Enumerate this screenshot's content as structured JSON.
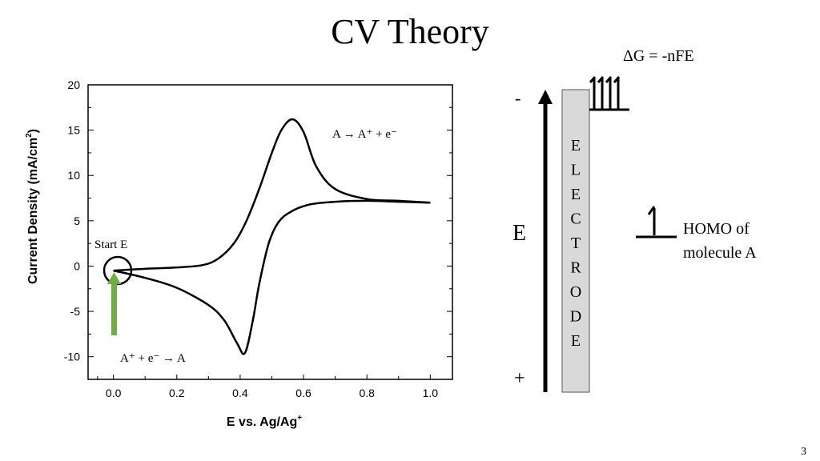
{
  "slide": {
    "title": "CV Theory",
    "page_number": "3"
  },
  "chart_data": {
    "type": "line",
    "xlabel": "E vs. Ag/Ag",
    "xlabel_sup": "+",
    "ylabel": "Current Density (mA/cm",
    "ylabel_sup": "2",
    "ylabel_end": ")",
    "xlim": [
      -0.08,
      1.07
    ],
    "ylim": [
      -12.5,
      20
    ],
    "x_ticks": [
      "0.0",
      "0.2",
      "0.4",
      "0.6",
      "0.8",
      "1.0"
    ],
    "x_tick_values": [
      0,
      0.2,
      0.4,
      0.6,
      0.8,
      1.0
    ],
    "y_ticks": [
      "20",
      "15",
      "10",
      "5",
      "0",
      "-5",
      "-10"
    ],
    "y_tick_values": [
      20,
      15,
      10,
      5,
      0,
      -5,
      -10
    ],
    "grid": false,
    "series": [
      {
        "x": [
          0.0,
          0.1,
          0.2,
          0.28,
          0.33,
          0.38,
          0.42,
          0.46,
          0.5,
          0.53,
          0.565,
          0.6,
          0.64,
          0.7,
          0.8,
          0.9,
          1.0
        ],
        "y": [
          -0.5,
          -0.3,
          -0.15,
          0.1,
          0.8,
          2.5,
          5.0,
          8.5,
          12.5,
          15.0,
          16.2,
          14.8,
          11.0,
          8.5,
          7.4,
          7.2,
          7.0
        ]
      },
      {
        "x": [
          1.0,
          0.9,
          0.8,
          0.7,
          0.62,
          0.56,
          0.52,
          0.49,
          0.46,
          0.44,
          0.415,
          0.39,
          0.35,
          0.3,
          0.2,
          0.1,
          0.0
        ],
        "y": [
          7.0,
          7.1,
          7.2,
          7.1,
          6.8,
          6.0,
          4.8,
          2.5,
          -2.0,
          -6.0,
          -9.6,
          -8.5,
          -6.0,
          -4.3,
          -2.4,
          -1.3,
          -0.5
        ]
      }
    ],
    "annotations": {
      "oxidation": "A → A⁺ + e⁻",
      "reduction": "A⁺ + e⁻ → A",
      "start": "Start E"
    },
    "start_marker_color": "#70ad47"
  },
  "diagram": {
    "equation": "ΔG = -nFE",
    "minus": "-",
    "plus": "+",
    "axis_label": "E",
    "electrode_letters": [
      "E",
      "L",
      "E",
      "C",
      "T",
      "R",
      "O",
      "D",
      "E"
    ],
    "homo_line1": "HOMO of",
    "homo_line2": "molecule A",
    "electrode_color": "#d9d9d9"
  }
}
